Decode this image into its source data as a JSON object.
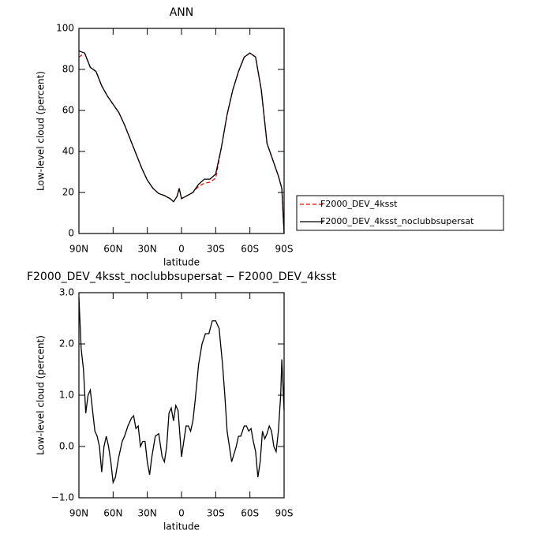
{
  "chart_data": [
    {
      "type": "line",
      "title": "ANN",
      "xlabel": "latitude",
      "ylabel": "Low-level cloud (percent)",
      "x": [
        90,
        85,
        80,
        75,
        70,
        65,
        60,
        55,
        50,
        45,
        40,
        35,
        30,
        25,
        20,
        15,
        10,
        7,
        4,
        2,
        0,
        -5,
        -10,
        -15,
        -20,
        -25,
        -30,
        -35,
        -40,
        -45,
        -50,
        -55,
        -60,
        -65,
        -70,
        -75,
        -80,
        -85,
        -88,
        -90
      ],
      "series": [
        {
          "name": "F2000_DEV_4ksst",
          "color": "#ff0000",
          "style": "dashed",
          "values": [
            86,
            88,
            81,
            79,
            72,
            67,
            63,
            59,
            53,
            46,
            39,
            32,
            26,
            22,
            19.5,
            18.5,
            17,
            15.5,
            18,
            22,
            17,
            18.5,
            20,
            23,
            24.5,
            25,
            27,
            42,
            58,
            70,
            79,
            86,
            88,
            86,
            70,
            44,
            36,
            28,
            22,
            0
          ]
        },
        {
          "name": "F2000_DEV_4ksst_noclubbsupersat",
          "color": "#000000",
          "style": "solid",
          "values": [
            89,
            88,
            81,
            79,
            72,
            67,
            63,
            59,
            53,
            46,
            39,
            32,
            26,
            22,
            19.5,
            18.5,
            17,
            15.5,
            18,
            22,
            17,
            18.5,
            20,
            24,
            26.5,
            26.5,
            29,
            42,
            58,
            70,
            79,
            86,
            88,
            86,
            70,
            44,
            36,
            28,
            22,
            0
          ]
        }
      ],
      "xlim": [
        90,
        -90
      ],
      "xticks": [
        {
          "value": 90,
          "label": "90N"
        },
        {
          "value": 60,
          "label": "60N"
        },
        {
          "value": 30,
          "label": "30N"
        },
        0,
        {
          "value": -30,
          "label": "30S"
        },
        {
          "value": -60,
          "label": "60S"
        },
        {
          "value": -90,
          "label": "90S"
        }
      ],
      "ylim": [
        0,
        100
      ],
      "yticks": [
        0,
        20,
        40,
        60,
        80,
        100
      ],
      "legend": "outside-right"
    },
    {
      "type": "line",
      "title": "F2000_DEV_4ksst_noclubbsupersat − F2000_DEV_4ksst",
      "xlabel": "latitude",
      "ylabel": "Low-level cloud (percent)",
      "x": [
        90,
        88,
        86,
        84,
        82,
        80,
        78,
        76,
        74,
        72,
        70,
        68,
        66,
        64,
        62,
        60,
        58,
        55,
        52,
        50,
        47,
        44,
        42,
        40,
        38,
        36,
        34,
        32,
        30,
        28,
        26,
        23,
        20,
        17,
        15,
        13,
        11,
        9,
        7,
        5,
        3,
        0,
        -2,
        -4,
        -6,
        -8,
        -10,
        -12,
        -15,
        -18,
        -21,
        -24,
        -27,
        -30,
        -33,
        -36,
        -38,
        -40,
        -42,
        -44,
        -46,
        -48,
        -50,
        -52,
        -55,
        -57,
        -59,
        -61,
        -63,
        -65,
        -67,
        -69,
        -71,
        -73,
        -75,
        -77,
        -79,
        -81,
        -83,
        -85,
        -87,
        -88,
        -90
      ],
      "series": [
        {
          "color": "#000000",
          "style": "solid",
          "values": [
            2.9,
            1.9,
            1.5,
            0.65,
            1.0,
            1.1,
            0.7,
            0.3,
            0.2,
            0.0,
            -0.5,
            0.0,
            0.2,
            0.0,
            -0.3,
            -0.7,
            -0.6,
            -0.2,
            0.1,
            0.2,
            0.4,
            0.55,
            0.6,
            0.35,
            0.4,
            0.0,
            0.1,
            0.1,
            -0.3,
            -0.55,
            -0.2,
            0.2,
            0.25,
            -0.2,
            -0.3,
            0.0,
            0.65,
            0.75,
            0.5,
            0.8,
            0.7,
            -0.2,
            0.1,
            0.4,
            0.4,
            0.3,
            0.5,
            0.9,
            1.6,
            2.0,
            2.2,
            2.2,
            2.45,
            2.45,
            2.3,
            1.6,
            1.0,
            0.3,
            0.0,
            -0.3,
            -0.15,
            0.0,
            0.2,
            0.2,
            0.4,
            0.4,
            0.3,
            0.35,
            0.1,
            -0.1,
            -0.6,
            -0.3,
            0.3,
            0.15,
            0.25,
            0.4,
            0.3,
            0.0,
            -0.1,
            0.3,
            1.0,
            1.7,
            0.7
          ]
        }
      ],
      "xlim": [
        90,
        -90
      ],
      "xticks": [
        {
          "value": 90,
          "label": "90N"
        },
        {
          "value": 60,
          "label": "60N"
        },
        {
          "value": 30,
          "label": "30N"
        },
        0,
        {
          "value": -30,
          "label": "30S"
        },
        {
          "value": -60,
          "label": "60S"
        },
        {
          "value": -90,
          "label": "90S"
        }
      ],
      "ylim": [
        -1,
        3
      ],
      "yticks": [
        {
          "value": -1,
          "label": "−1.0"
        },
        {
          "value": 0,
          "label": "0.0"
        },
        {
          "value": 1,
          "label": "1.0"
        },
        {
          "value": 2,
          "label": "2.0"
        },
        {
          "value": 3,
          "label": "3.0"
        }
      ]
    }
  ]
}
